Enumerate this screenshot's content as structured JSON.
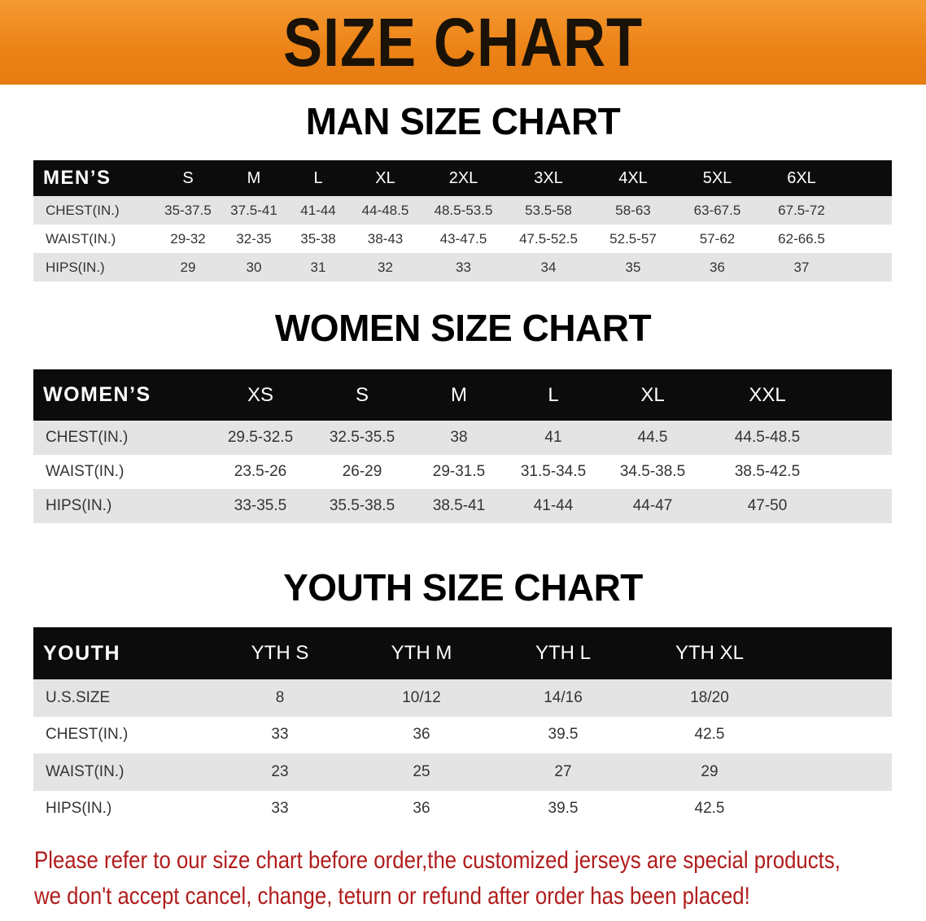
{
  "banner": {
    "title": "SIZE CHART",
    "color": "#ec8216"
  },
  "men": {
    "title": "MAN SIZE CHART",
    "headers": [
      "MEN’S",
      "S",
      "M",
      "L",
      "XL",
      "2XL",
      "3XL",
      "4XL",
      "5XL",
      "6XL",
      ""
    ],
    "rows": [
      [
        "CHEST(IN.)",
        "35-37.5",
        "37.5-41",
        "41-44",
        "44-48.5",
        "48.5-53.5",
        "53.5-58",
        "58-63",
        "63-67.5",
        "67.5-72",
        ""
      ],
      [
        "WAIST(IN.)",
        "29-32",
        "32-35",
        "35-38",
        "38-43",
        "43-47.5",
        "47.5-52.5",
        "52.5-57",
        "57-62",
        "62-66.5",
        ""
      ],
      [
        "HIPS(IN.)",
        "29",
        "30",
        "31",
        "32",
        "33",
        "34",
        "35",
        "36",
        "37",
        ""
      ]
    ]
  },
  "women": {
    "title": "WOMEN SIZE CHART",
    "headers": [
      "WOMEN’S",
      "XS",
      "S",
      "M",
      "L",
      "XL",
      "XXL",
      ""
    ],
    "rows": [
      [
        "CHEST(IN.)",
        "29.5-32.5",
        "32.5-35.5",
        "38",
        "41",
        "44.5",
        "44.5-48.5",
        ""
      ],
      [
        "WAIST(IN.)",
        "23.5-26",
        "26-29",
        "29-31.5",
        "31.5-34.5",
        "34.5-38.5",
        "38.5-42.5",
        ""
      ],
      [
        "HIPS(IN.)",
        "33-35.5",
        "35.5-38.5",
        "38.5-41",
        "41-44",
        "44-47",
        "47-50",
        ""
      ]
    ]
  },
  "youth": {
    "title": "YOUTH SIZE CHART",
    "headers": [
      "YOUTH",
      "YTH S",
      "YTH M",
      "YTH L",
      "YTH XL",
      ""
    ],
    "rows": [
      [
        "U.S.SIZE",
        "8",
        "10/12",
        "14/16",
        "18/20",
        ""
      ],
      [
        "CHEST(IN.)",
        "33",
        "36",
        "39.5",
        "42.5",
        ""
      ],
      [
        "WAIST(IN.)",
        "23",
        "25",
        "27",
        "29",
        ""
      ],
      [
        "HIPS(IN.)",
        "33",
        "36",
        "39.5",
        "42.5",
        ""
      ]
    ]
  },
  "note": {
    "line1": "Please refer to our size chart before order,the customized jerseys are special products,",
    "line2": "we don't accept cancel, change, teturn or refund after order has been placed!",
    "color": "#b01c1c"
  }
}
